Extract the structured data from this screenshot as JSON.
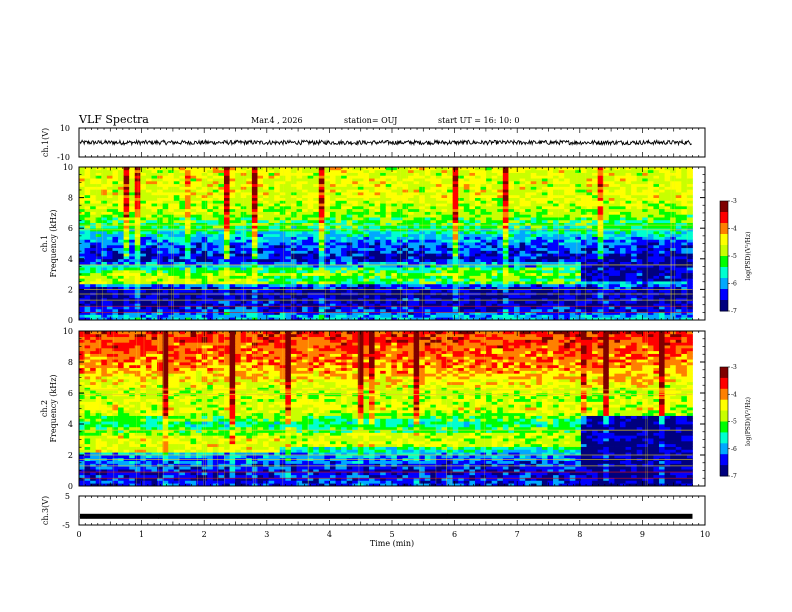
{
  "header": {
    "title": "VLF Spectra",
    "date": "Mar.4 , 2026",
    "station": "station= OUJ",
    "start": "start UT = 16: 10: 0"
  },
  "chart_data": [
    {
      "type": "line",
      "panel": "ch1-waveform",
      "ylabel": "ch.1(V)",
      "ylim": [
        -10,
        10
      ],
      "yticks": [
        "10",
        "-10"
      ],
      "description_values": {
        "baseline_V": 0,
        "amplitude_V": 1.5
      },
      "color": "#000000"
    },
    {
      "type": "heatmap",
      "panel": "ch1-spectrogram",
      "ylabel_line1": "ch.1",
      "ylabel_line2": "Frequency (kHz)",
      "ylim": [
        0,
        10
      ],
      "yticks": [
        "0",
        "2",
        "4",
        "6",
        "8",
        "10"
      ],
      "xlim": [
        0,
        10
      ],
      "profile_kHz": [
        0,
        1,
        2,
        3,
        4,
        5,
        6,
        7,
        8,
        9,
        10
      ],
      "profile_logPSD": [
        -5.8,
        -6.6,
        -6.7,
        -4.9,
        -6.6,
        -6.2,
        -5.4,
        -4.9,
        -4.6,
        -4.6,
        -4.6
      ],
      "segments": [
        {
          "t0": 0,
          "t1": 2.8,
          "band_kHz": [
            2.3,
            3.0
          ],
          "band_logPSD": -4.8
        },
        {
          "t0": 2.8,
          "t1": 8.0,
          "band_kHz": [
            2.4,
            3.4
          ],
          "band_logPSD": -5.2
        },
        {
          "t0": 8.0,
          "t1": 9.8,
          "band_kHz": [
            2.6,
            3.8
          ],
          "band_logPSD": -6.6
        }
      ],
      "colorbar": {
        "label": "log(PSD)(V²/Hz)",
        "min": -7,
        "max": -3,
        "ticks": [
          "-3",
          "-4",
          "-5",
          "-6",
          "-7"
        ]
      }
    },
    {
      "type": "heatmap",
      "panel": "ch2-spectrogram",
      "ylabel_line1": "ch.2",
      "ylabel_line2": "Frequency (kHz)",
      "ylim": [
        0,
        10
      ],
      "yticks": [
        "0",
        "2",
        "4",
        "6",
        "8",
        "10"
      ],
      "xlim": [
        0,
        10
      ],
      "profile_kHz": [
        0,
        1,
        2,
        3,
        4,
        5,
        6,
        7,
        8,
        9,
        10
      ],
      "profile_logPSD": [
        -6.3,
        -6.5,
        -6.0,
        -4.7,
        -5.5,
        -4.6,
        -4.8,
        -4.3,
        -4.0,
        -3.8,
        -3.7
      ],
      "segments": [
        {
          "t0": 0,
          "t1": 3.2,
          "band_kHz": [
            2.2,
            3.2
          ],
          "band_logPSD": -4.6
        },
        {
          "t0": 3.2,
          "t1": 8.0,
          "band_kHz": [
            2.6,
            3.4
          ],
          "band_logPSD": -4.7
        },
        {
          "t0": 8.0,
          "t1": 9.8,
          "band_kHz": [
            0,
            4.5
          ],
          "band_logPSD": -6.8
        }
      ],
      "colorbar": {
        "label": "log(PSD)(V²/Hz)",
        "min": -7,
        "max": -3,
        "ticks": [
          "-3",
          "-4",
          "-5",
          "-6",
          "-7"
        ]
      }
    },
    {
      "type": "line",
      "panel": "ch3-waveform",
      "ylabel": "ch.3(V)",
      "ylim": [
        -5,
        5
      ],
      "yticks": [
        "5",
        "-5"
      ],
      "description_values": {
        "baseline_V": -2,
        "amplitude_V": 0.2
      },
      "color": "#000000"
    }
  ],
  "xaxis": {
    "label": "Time (min)",
    "range": [
      0,
      10
    ],
    "ticks": [
      "0",
      "1",
      "2",
      "3",
      "4",
      "5",
      "6",
      "7",
      "8",
      "9",
      "10"
    ],
    "data_end_min": 9.8
  },
  "colors": {
    "colormap": [
      "#00007f",
      "#0000ff",
      "#00a8ff",
      "#00ffd0",
      "#00ff00",
      "#c8ff00",
      "#ffff00",
      "#ff8000",
      "#ff0000",
      "#7f0000"
    ]
  }
}
